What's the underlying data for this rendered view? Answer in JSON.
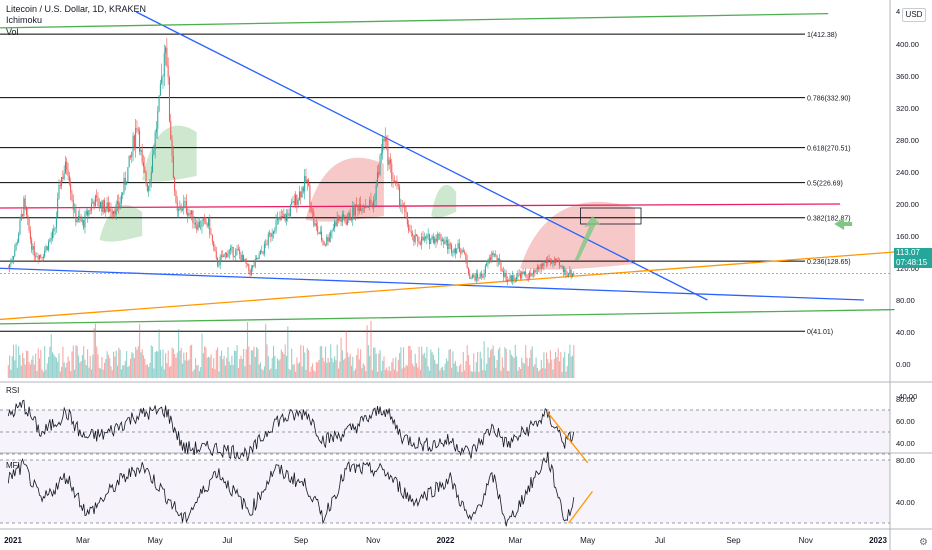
{
  "legend": {
    "title": "Litecoin / U.S. Dollar, 1D, KRAKEN",
    "ichimoku": "Ichimoku",
    "vol": "Vol"
  },
  "currency": "USD",
  "last_price": {
    "value": "113.07",
    "countdown": "07:48:15"
  },
  "pane_labels": {
    "rsi": "RSI",
    "mfi": "MFI"
  },
  "colors": {
    "up": "#26a69a",
    "down": "#ef5350",
    "fib": "#000000",
    "cloud_green": "#a5d6a7",
    "cloud_red": "#ef9a9a",
    "blue_trend": "#2962ff",
    "orange_trend": "#ff9800",
    "green_trend": "#4caf50",
    "pink_trend": "#e91e63",
    "arrow": "#81c784"
  },
  "chart_data": {
    "type": "candlestick",
    "symbol": "LTCUSD",
    "timeframe": "1D",
    "exchange": "KRAKEN",
    "price_axis": {
      "ticks": [
        400,
        360,
        320,
        280,
        240,
        200,
        160,
        120,
        80,
        40,
        0,
        -40
      ],
      "extra": "4"
    },
    "time_axis": {
      "labels": [
        "2021",
        "Mar",
        "May",
        "Jul",
        "Sep",
        "Nov",
        "2022",
        "Mar",
        "May",
        "Jul",
        "Sep",
        "Nov",
        "2023"
      ]
    },
    "fib_levels": [
      {
        "ratio": "1",
        "price": 412.38,
        "label": "1(412.38)"
      },
      {
        "ratio": "0.786",
        "price": 332.9,
        "label": "0.786(332.90)"
      },
      {
        "ratio": "0.618",
        "price": 270.51,
        "label": "0.618(270.51)"
      },
      {
        "ratio": "0.5",
        "price": 226.69,
        "label": "0.5(226.69)"
      },
      {
        "ratio": "0.382",
        "price": 182.87,
        "label": "0.382(182.87)"
      },
      {
        "ratio": "0.236",
        "price": 128.65,
        "label": "0.236(128.65)"
      },
      {
        "ratio": "0",
        "price": 41.01,
        "label": "0(41.01)"
      }
    ],
    "price_path": [
      [
        "2020-12-28",
        120
      ],
      [
        "2021-01-04",
        150
      ],
      [
        "2021-01-10",
        200
      ],
      [
        "2021-01-18",
        140
      ],
      [
        "2021-01-25",
        135
      ],
      [
        "2021-02-05",
        165
      ],
      [
        "2021-02-10",
        230
      ],
      [
        "2021-02-16",
        250
      ],
      [
        "2021-02-22",
        185
      ],
      [
        "2021-03-01",
        175
      ],
      [
        "2021-03-10",
        205
      ],
      [
        "2021-03-20",
        195
      ],
      [
        "2021-03-31",
        195
      ],
      [
        "2021-04-10",
        255
      ],
      [
        "2021-04-16",
        305
      ],
      [
        "2021-04-20",
        245
      ],
      [
        "2021-04-25",
        220
      ],
      [
        "2021-05-05",
        330
      ],
      [
        "2021-05-10",
        412
      ],
      [
        "2021-05-13",
        310
      ],
      [
        "2021-05-19",
        185
      ],
      [
        "2021-05-25",
        200
      ],
      [
        "2021-06-05",
        175
      ],
      [
        "2021-06-15",
        175
      ],
      [
        "2021-06-22",
        125
      ],
      [
        "2021-07-01",
        140
      ],
      [
        "2021-07-10",
        140
      ],
      [
        "2021-07-20",
        115
      ],
      [
        "2021-08-01",
        145
      ],
      [
        "2021-08-10",
        175
      ],
      [
        "2021-08-20",
        185
      ],
      [
        "2021-09-06",
        230
      ],
      [
        "2021-09-12",
        175
      ],
      [
        "2021-09-21",
        150
      ],
      [
        "2021-10-01",
        180
      ],
      [
        "2021-10-10",
        180
      ],
      [
        "2021-10-20",
        200
      ],
      [
        "2021-11-01",
        200
      ],
      [
        "2021-11-10",
        285
      ],
      [
        "2021-11-16",
        240
      ],
      [
        "2021-11-26",
        195
      ],
      [
        "2021-12-04",
        155
      ],
      [
        "2021-12-15",
        155
      ],
      [
        "2021-12-27",
        160
      ],
      [
        "2022-01-05",
        145
      ],
      [
        "2022-01-15",
        145
      ],
      [
        "2022-01-22",
        108
      ],
      [
        "2022-02-01",
        110
      ],
      [
        "2022-02-10",
        140
      ],
      [
        "2022-02-22",
        105
      ],
      [
        "2022-03-05",
        112
      ],
      [
        "2022-03-15",
        110
      ],
      [
        "2022-03-28",
        130
      ],
      [
        "2022-04-05",
        125
      ],
      [
        "2022-04-12",
        115
      ],
      [
        "2022-04-20",
        113
      ]
    ],
    "ichimoku_cloud": [
      {
        "color": "green",
        "from": "2021-03-15",
        "to": "2021-04-20",
        "top": 200,
        "bottom": 155
      },
      {
        "color": "green",
        "from": "2021-04-20",
        "to": "2021-06-05",
        "top": 300,
        "bottom": 230
      },
      {
        "color": "red",
        "from": "2021-09-05",
        "to": "2021-11-10",
        "top": 260,
        "bottom": 180
      },
      {
        "color": "green",
        "from": "2021-12-20",
        "to": "2022-01-10",
        "top": 225,
        "bottom": 185
      },
      {
        "color": "red",
        "from": "2022-03-05",
        "to": "2022-06-10",
        "top": 205,
        "bottom": 120
      }
    ],
    "trendlines": [
      {
        "name": "",
        "color": "blue",
        "from": [
          "2021-04-15",
          440
        ],
        "to": [
          "2022-08-10",
          80
        ]
      },
      {
        "name": "",
        "color": "blue",
        "from": [
          "2020-12-15",
          120
        ],
        "to": [
          "2022-12-20",
          80
        ]
      },
      {
        "name": "",
        "color": "orange",
        "from": [
          "2020-12-15",
          55
        ],
        "to": [
          "2023-01-15",
          140
        ]
      },
      {
        "name": "",
        "color": "green",
        "from": [
          "2020-12-15",
          420
        ],
        "to": [
          "2022-11-20",
          438
        ]
      },
      {
        "name": "",
        "color": "green",
        "from": [
          "2020-12-15",
          50
        ],
        "to": [
          "2023-01-15",
          68
        ]
      },
      {
        "name": "",
        "color": "pink",
        "from": [
          "2020-12-15",
          195
        ],
        "to": [
          "2022-11-30",
          200
        ]
      }
    ],
    "annotations": [
      {
        "type": "rectangle",
        "from": [
          "2022-04-25",
          195
        ],
        "to": [
          "2022-06-15",
          175
        ]
      },
      {
        "type": "arrow",
        "from": [
          "2022-04-20",
          130
        ],
        "to": [
          "2022-05-05",
          185
        ]
      },
      {
        "type": "arrow",
        "from": [
          "2022-12-05",
          175
        ],
        "to": [
          "2022-11-25",
          175
        ]
      }
    ],
    "rsi": {
      "ticks": [
        80,
        60,
        40
      ],
      "bands": [
        70,
        50,
        30
      ],
      "path": [
        [
          "2020-12-28",
          65
        ],
        [
          "2021-01-10",
          75
        ],
        [
          "2021-01-25",
          48
        ],
        [
          "2021-02-15",
          68
        ],
        [
          "2021-03-01",
          45
        ],
        [
          "2021-03-20",
          48
        ],
        [
          "2021-04-15",
          65
        ],
        [
          "2021-05-10",
          70
        ],
        [
          "2021-05-25",
          35
        ],
        [
          "2021-06-22",
          35
        ],
        [
          "2021-07-20",
          30
        ],
        [
          "2021-08-10",
          60
        ],
        [
          "2021-09-06",
          68
        ],
        [
          "2021-09-20",
          42
        ],
        [
          "2021-10-10",
          50
        ],
        [
          "2021-11-10",
          72
        ],
        [
          "2021-11-26",
          45
        ],
        [
          "2021-12-15",
          38
        ],
        [
          "2022-01-05",
          42
        ],
        [
          "2022-01-22",
          30
        ],
        [
          "2022-02-10",
          55
        ],
        [
          "2022-02-22",
          38
        ],
        [
          "2022-03-28",
          66
        ],
        [
          "2022-04-12",
          40
        ],
        [
          "2022-04-20",
          48
        ]
      ],
      "drawing": {
        "color": "orange",
        "from": [
          "2022-03-28",
          68
        ],
        "to": [
          "2022-05-01",
          22
        ]
      }
    },
    "mfi": {
      "ticks": [
        80,
        40
      ],
      "bands": [
        80,
        20
      ],
      "path": [
        [
          "2020-12-28",
          62
        ],
        [
          "2021-01-10",
          75
        ],
        [
          "2021-01-25",
          40
        ],
        [
          "2021-02-15",
          65
        ],
        [
          "2021-03-05",
          28
        ],
        [
          "2021-04-01",
          60
        ],
        [
          "2021-04-20",
          75
        ],
        [
          "2021-05-13",
          42
        ],
        [
          "2021-05-25",
          22
        ],
        [
          "2021-06-22",
          70
        ],
        [
          "2021-07-20",
          30
        ],
        [
          "2021-08-10",
          72
        ],
        [
          "2021-09-06",
          55
        ],
        [
          "2021-09-20",
          25
        ],
        [
          "2021-10-10",
          72
        ],
        [
          "2021-11-10",
          70
        ],
        [
          "2021-12-05",
          40
        ],
        [
          "2022-01-05",
          62
        ],
        [
          "2022-01-22",
          20
        ],
        [
          "2022-02-10",
          65
        ],
        [
          "2022-02-22",
          18
        ],
        [
          "2022-03-28",
          84
        ],
        [
          "2022-04-12",
          22
        ],
        [
          "2022-04-20",
          40
        ]
      ],
      "drawing": {
        "color": "orange",
        "from": [
          "2022-04-15",
          20
        ],
        "to": [
          "2022-05-05",
          50
        ]
      }
    }
  }
}
